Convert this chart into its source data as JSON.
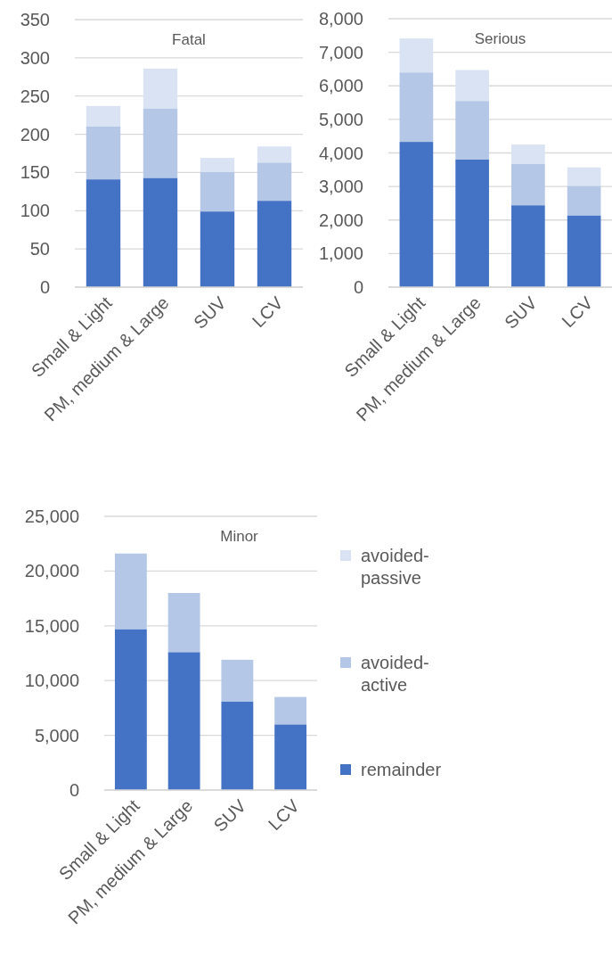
{
  "chart_data": [
    {
      "type": "bar",
      "title": "Fatal",
      "stacked": true,
      "grid": "y",
      "categories": [
        "Small & Light",
        "PM, medium & Large",
        "SUV",
        "LCV"
      ],
      "ylim": [
        0,
        350
      ],
      "yticks": [
        0,
        50,
        100,
        150,
        200,
        250,
        300,
        350
      ],
      "series": [
        {
          "color": "#4472c4",
          "values": [
            141,
            143,
            99,
            113
          ]
        },
        {
          "color": "#b4c7e7",
          "values": [
            69,
            91,
            52,
            50
          ]
        },
        {
          "color": "#dae3f3",
          "values": [
            27,
            52,
            18,
            21
          ]
        }
      ]
    },
    {
      "type": "bar",
      "title": "Serious",
      "stacked": true,
      "grid": "y",
      "categories": [
        "Small & Light",
        "PM, medium & Large",
        "SUV",
        "LCV"
      ],
      "ylim": [
        0,
        8000
      ],
      "yticks": [
        0,
        {
          "value": 1000,
          "label": "1,000"
        },
        {
          "value": 2000,
          "label": "2,000"
        },
        {
          "value": 3000,
          "label": "3,000"
        },
        {
          "value": 4000,
          "label": "4,000"
        },
        {
          "value": 5000,
          "label": "5,000"
        },
        {
          "value": 6000,
          "label": "6,000"
        },
        {
          "value": 7000,
          "label": "7,000"
        },
        {
          "value": 8000,
          "label": "8,000"
        }
      ],
      "series": [
        {
          "color": "#4472c4",
          "values": [
            4330,
            3810,
            2440,
            2140
          ]
        },
        {
          "color": "#b4c7e7",
          "values": [
            2070,
            1740,
            1240,
            880
          ]
        },
        {
          "color": "#dae3f3",
          "values": [
            1010,
            920,
            570,
            550
          ]
        }
      ]
    },
    {
      "type": "bar",
      "title": "Minor",
      "stacked": true,
      "grid": "y",
      "legend": "right",
      "categories": [
        "Small & Light",
        "PM, medium & Large",
        "SUV",
        "LCV"
      ],
      "ylim": [
        0,
        25000
      ],
      "yticks": [
        0,
        {
          "value": 5000,
          "label": "5,000"
        },
        {
          "value": 10000,
          "label": "10,000"
        },
        {
          "value": 15000,
          "label": "15,000"
        },
        {
          "value": 20000,
          "label": "20,000"
        },
        {
          "value": 25000,
          "label": "25,000"
        }
      ],
      "series": [
        {
          "name": "remainder",
          "color": "#4472c4",
          "values": [
            14700,
            12600,
            8100,
            6000
          ]
        },
        {
          "name": "avoided-active",
          "color": "#b4c7e7",
          "values": [
            6900,
            5400,
            3800,
            2500
          ]
        },
        {
          "name": "avoided-passive",
          "color": "#dae3f3",
          "values": [
            null,
            null,
            null,
            null
          ]
        }
      ]
    }
  ]
}
